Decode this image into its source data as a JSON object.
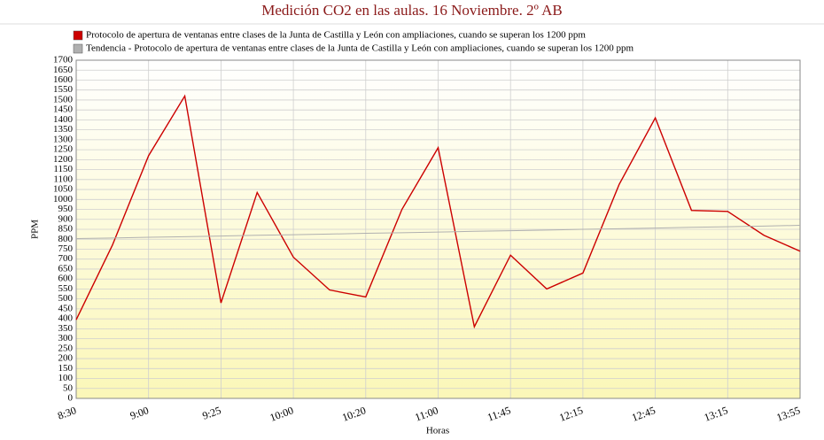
{
  "chart_data": {
    "type": "line",
    "title": "Medición CO2 en las aulas. 16 Noviembre. 2º AB",
    "x_label": "Horas",
    "y_label": "PPM",
    "categories": [
      "8:30",
      null,
      "9:00",
      null,
      "9:25",
      null,
      "10:00",
      null,
      "10:20",
      null,
      "11:00",
      null,
      "11:45",
      null,
      "12:15",
      null,
      "12:45",
      null,
      "13:15",
      null,
      "13:55"
    ],
    "series": [
      {
        "name": "Protocolo de apertura de ventanas entre clases de la Junta de Castilla y León con ampliaciones, cuando se superan los 1200 ppm",
        "color": "#cc0000",
        "values": [
          395,
          770,
          1220,
          1520,
          480,
          1035,
          710,
          545,
          510,
          950,
          1260,
          360,
          720,
          550,
          630,
          1075,
          1410,
          945,
          940,
          820,
          740
        ]
      },
      {
        "name": "Tendencia - Protocolo de apertura de ventanas entre clases de la Junta de Castilla y León con ampliaciones, cuando se superan los 1200 ppm",
        "color": "#b0b0b0",
        "values": [
          803,
          806,
          810,
          813,
          816,
          820,
          823,
          826,
          830,
          833,
          836,
          840,
          843,
          846,
          850,
          853,
          856,
          860,
          863,
          866,
          870
        ]
      }
    ],
    "ylim": [
      0,
      1700
    ],
    "yticks": [
      0,
      50,
      100,
      150,
      200,
      250,
      300,
      350,
      400,
      450,
      500,
      550,
      600,
      650,
      700,
      750,
      800,
      850,
      900,
      950,
      1000,
      1050,
      1100,
      1150,
      1200,
      1250,
      1300,
      1350,
      1400,
      1450,
      1500,
      1550,
      1600,
      1650,
      1700
    ],
    "grid": true
  }
}
